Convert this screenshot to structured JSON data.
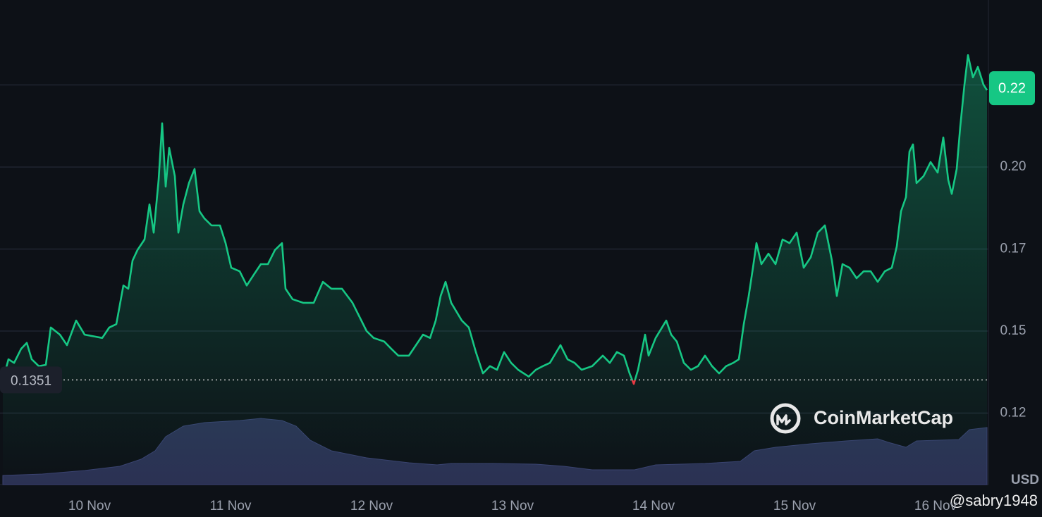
{
  "chart_data": {
    "type": "line",
    "y_axis_label": "USD",
    "current_price_label": "0.22",
    "reference_value": 0.1351,
    "watermark": "CoinMarketCap",
    "credit": "@sabry1948",
    "xlim": [
      9.385,
      16.365
    ],
    "xticks": [
      {
        "value": 10,
        "label": "10 Nov"
      },
      {
        "value": 11,
        "label": "11 Nov"
      },
      {
        "value": 12,
        "label": "12 Nov"
      },
      {
        "value": 13,
        "label": "13 Nov"
      },
      {
        "value": 14,
        "label": "14 Nov"
      },
      {
        "value": 15,
        "label": "15 Nov"
      },
      {
        "value": 16,
        "label": "16 Nov"
      }
    ],
    "ylim": [
      0.1032,
      0.2509
    ],
    "yticks": [
      {
        "value": 0.125,
        "label": "0.12"
      },
      {
        "value": 0.15,
        "label": "0.15"
      },
      {
        "value": 0.175,
        "label": "0.17"
      },
      {
        "value": 0.2,
        "label": "0.20"
      },
      {
        "value": 0.225,
        "label": "0.22"
      }
    ],
    "y2lim": [
      0,
      100
    ],
    "grid": true,
    "series": [
      {
        "color": "#16c784",
        "below_color": "#ea3943",
        "x": [
          9.385,
          9.425,
          9.465,
          9.515,
          9.555,
          9.59,
          9.64,
          9.69,
          9.725,
          9.79,
          9.84,
          9.905,
          9.965,
          10.04,
          10.09,
          10.14,
          10.19,
          10.24,
          10.275,
          10.305,
          10.34,
          10.39,
          10.425,
          10.455,
          10.49,
          10.515,
          10.54,
          10.565,
          10.605,
          10.63,
          10.665,
          10.705,
          10.745,
          10.78,
          10.815,
          10.865,
          10.925,
          10.965,
          11.005,
          11.065,
          11.115,
          11.165,
          11.215,
          11.265,
          11.315,
          11.365,
          11.39,
          11.44,
          11.515,
          11.59,
          11.655,
          11.715,
          11.79,
          11.865,
          11.915,
          11.965,
          12.015,
          12.09,
          12.14,
          12.19,
          12.265,
          12.315,
          12.365,
          12.415,
          12.455,
          12.49,
          12.525,
          12.565,
          12.64,
          12.69,
          12.74,
          12.79,
          12.84,
          12.89,
          12.94,
          12.99,
          13.04,
          13.115,
          13.165,
          13.215,
          13.265,
          13.34,
          13.39,
          13.44,
          13.49,
          13.565,
          13.64,
          13.69,
          13.74,
          13.79,
          13.83,
          13.86,
          13.89,
          13.94,
          13.965,
          14.015,
          14.09,
          14.125,
          14.165,
          14.215,
          14.265,
          14.315,
          14.365,
          14.415,
          14.465,
          14.515,
          14.565,
          14.605,
          14.64,
          14.675,
          14.705,
          14.73,
          14.765,
          14.815,
          14.865,
          14.915,
          14.965,
          15.015,
          15.065,
          15.115,
          15.165,
          15.215,
          15.265,
          15.3,
          15.34,
          15.39,
          15.44,
          15.49,
          15.54,
          15.59,
          15.64,
          15.69,
          15.725,
          15.755,
          15.79,
          15.815,
          15.84,
          15.865,
          15.915,
          15.965,
          16.015,
          16.055,
          16.09,
          16.115,
          16.15,
          16.175,
          16.205,
          16.23,
          16.265,
          16.3,
          16.34,
          16.365
        ],
        "values": [
          0.135,
          0.1414,
          0.1403,
          0.1446,
          0.1464,
          0.1414,
          0.1393,
          0.1397,
          0.1511,
          0.1489,
          0.1457,
          0.1532,
          0.1489,
          0.1483,
          0.1479,
          0.1511,
          0.1521,
          0.1639,
          0.1629,
          0.1715,
          0.1747,
          0.1779,
          0.1886,
          0.18,
          0.1961,
          0.2133,
          0.194,
          0.2058,
          0.1972,
          0.18,
          0.1886,
          0.1951,
          0.1994,
          0.1865,
          0.1843,
          0.1822,
          0.1822,
          0.1768,
          0.1693,
          0.1682,
          0.1639,
          0.1672,
          0.1704,
          0.1704,
          0.1747,
          0.1768,
          0.1629,
          0.1597,
          0.1586,
          0.1586,
          0.165,
          0.1629,
          0.1629,
          0.1586,
          0.1543,
          0.15,
          0.1479,
          0.1468,
          0.1446,
          0.1425,
          0.1425,
          0.1457,
          0.1489,
          0.1479,
          0.1532,
          0.1607,
          0.165,
          0.1586,
          0.1532,
          0.1511,
          0.1436,
          0.1371,
          0.1393,
          0.1382,
          0.1436,
          0.1403,
          0.1382,
          0.1361,
          0.1382,
          0.1393,
          0.1403,
          0.1457,
          0.1414,
          0.1403,
          0.1382,
          0.1393,
          0.1425,
          0.1403,
          0.1436,
          0.1425,
          0.1371,
          0.1339,
          0.1382,
          0.1489,
          0.1425,
          0.1479,
          0.1532,
          0.1489,
          0.1468,
          0.1403,
          0.1382,
          0.1393,
          0.1425,
          0.1393,
          0.1371,
          0.1393,
          0.1403,
          0.1414,
          0.1521,
          0.1607,
          0.1693,
          0.1768,
          0.1704,
          0.1736,
          0.1704,
          0.1779,
          0.1768,
          0.18,
          0.1693,
          0.1725,
          0.18,
          0.1822,
          0.1715,
          0.1607,
          0.1704,
          0.1693,
          0.1661,
          0.1682,
          0.1682,
          0.165,
          0.1682,
          0.1693,
          0.1758,
          0.1865,
          0.1908,
          0.2047,
          0.2069,
          0.1951,
          0.1972,
          0.2015,
          0.1983,
          0.209,
          0.1961,
          0.1918,
          0.1994,
          0.2122,
          0.2251,
          0.2341,
          0.2273,
          0.2305,
          0.2251,
          0.2234
        ]
      },
      {
        "axis": "y2",
        "color": "#2b3153",
        "x": [
          9.385,
          9.665,
          9.965,
          10.215,
          10.365,
          10.465,
          10.54,
          10.665,
          10.815,
          11.065,
          11.215,
          11.365,
          11.465,
          11.565,
          11.715,
          11.965,
          12.265,
          12.465,
          12.565,
          12.865,
          13.165,
          13.365,
          13.565,
          13.865,
          14.015,
          14.365,
          14.615,
          14.715,
          14.865,
          15.115,
          15.365,
          15.59,
          15.665,
          15.79,
          15.865,
          16.165,
          16.24,
          16.365
        ],
        "values": [
          13,
          15,
          20,
          26,
          36,
          48,
          68,
          83,
          88,
          91,
          94,
          91,
          83,
          63,
          48,
          38,
          31,
          28,
          30,
          30,
          29,
          26,
          21,
          21,
          28,
          30,
          33,
          48,
          53,
          58,
          62,
          65,
          60,
          53,
          62,
          64,
          78,
          81
        ]
      }
    ]
  }
}
